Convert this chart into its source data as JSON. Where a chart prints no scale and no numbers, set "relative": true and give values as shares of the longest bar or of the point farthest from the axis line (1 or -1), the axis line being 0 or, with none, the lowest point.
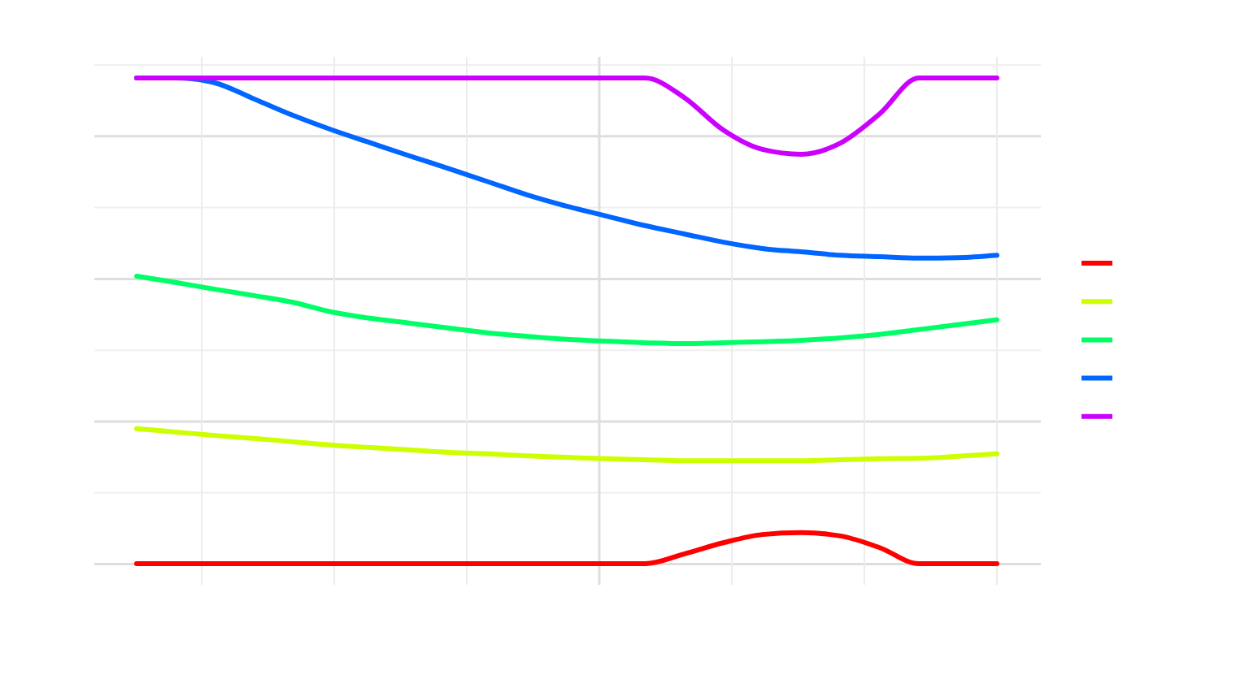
{
  "chart_data": {
    "type": "line",
    "relative": true,
    "grid": true,
    "categories": [
      null,
      null,
      null,
      null,
      null,
      null,
      null,
      null,
      null,
      null,
      null,
      null,
      null,
      null,
      null,
      null,
      null,
      null,
      null,
      null,
      null,
      null,
      null
    ],
    "series": [
      {
        "color": "#ff0000",
        "values": [
          0,
          0,
          0,
          0,
          0,
          0,
          0,
          0,
          0,
          0,
          0,
          0,
          0,
          0,
          0.02,
          0.043,
          0.06,
          0.064,
          0.057,
          0.033,
          0,
          0,
          0
        ]
      },
      {
        "color": "#ccff00",
        "values": [
          0.278,
          0.271,
          0.264,
          0.258,
          0.251,
          0.244,
          0.239,
          0.234,
          0.229,
          0.226,
          0.222,
          0.219,
          0.216,
          0.214,
          0.212,
          0.212,
          0.212,
          0.212,
          0.214,
          0.216,
          0.217,
          0.221,
          0.226
        ]
      },
      {
        "color": "#00ff66",
        "values": [
          0.592,
          0.579,
          0.565,
          0.552,
          0.538,
          0.518,
          0.505,
          0.495,
          0.485,
          0.475,
          0.468,
          0.462,
          0.458,
          0.455,
          0.453,
          0.455,
          0.457,
          0.46,
          0.465,
          0.472,
          0.482,
          0.492,
          0.502
        ]
      },
      {
        "color": "#0066ff",
        "values": [
          1,
          1,
          0.99,
          0.957,
          0.923,
          0.893,
          0.866,
          0.839,
          0.813,
          0.786,
          0.759,
          0.736,
          0.716,
          0.696,
          0.679,
          0.662,
          0.649,
          0.642,
          0.635,
          0.632,
          0.629,
          0.63,
          0.635
        ]
      },
      {
        "color": "#cc00ff",
        "values": [
          1,
          1,
          1,
          1,
          1,
          1,
          1,
          1,
          1,
          1,
          1,
          1,
          1,
          1,
          0.96,
          0.893,
          0.853,
          0.843,
          0.866,
          0.926,
          1,
          1,
          1
        ]
      }
    ]
  }
}
